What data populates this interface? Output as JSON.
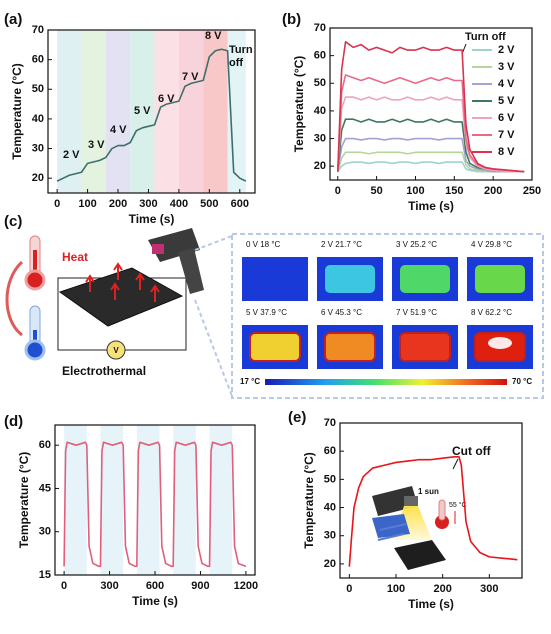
{
  "chart_data": [
    {
      "type": "line",
      "label": "(a)",
      "x_label": "Time (s)",
      "y_label": "Temperature (°C)",
      "xlim": [
        -30,
        650
      ],
      "xticks": [
        0,
        100,
        200,
        300,
        400,
        500,
        600
      ],
      "ylim": [
        15,
        70
      ],
      "yticks": [
        20,
        30,
        40,
        50,
        60,
        70
      ],
      "x": [
        0,
        20,
        40,
        60,
        80,
        100,
        120,
        140,
        160,
        180,
        200,
        220,
        240,
        260,
        280,
        300,
        320,
        340,
        360,
        380,
        400,
        420,
        440,
        460,
        480,
        500,
        520,
        540,
        560,
        580,
        600,
        620
      ],
      "values": [
        19,
        20,
        21,
        21.5,
        22,
        25,
        25.5,
        26,
        27,
        30,
        31,
        31,
        32,
        36,
        37,
        37.5,
        38,
        44,
        45,
        45.5,
        46,
        51,
        52,
        52.5,
        53,
        61,
        63,
        63.5,
        63,
        22,
        20,
        19
      ],
      "color": "#3f6f6a",
      "annotations": [
        "2 V",
        "3 V",
        "4 V",
        "5 V",
        "6 V",
        "7 V",
        "8 V",
        "Turn off"
      ]
    },
    {
      "type": "line",
      "label": "(b)",
      "x_label": "Time (s)",
      "y_label": "Temperature (°C)",
      "xlim": [
        -10,
        250
      ],
      "xticks": [
        0,
        50,
        100,
        150,
        200,
        250
      ],
      "ylim": [
        15,
        70
      ],
      "yticks": [
        20,
        30,
        40,
        50,
        60,
        70
      ],
      "x": [
        0,
        5,
        10,
        20,
        30,
        40,
        50,
        60,
        70,
        80,
        90,
        100,
        110,
        120,
        130,
        140,
        150,
        160,
        165,
        170,
        180,
        190,
        200,
        220,
        240
      ],
      "legend": "right",
      "series": [
        {
          "name": "2 V",
          "color": "#9fd3cf",
          "values": [
            18,
            20,
            21,
            21.5,
            21.5,
            21,
            21.5,
            21.5,
            21,
            21.5,
            21.5,
            21,
            21.5,
            21.5,
            21,
            21.5,
            21.5,
            21.5,
            19,
            18.5,
            18,
            18,
            18,
            18,
            18
          ]
        },
        {
          "name": "3 V",
          "color": "#b3d69a",
          "values": [
            18,
            23,
            25,
            25,
            25,
            24.5,
            25,
            25,
            25,
            25,
            24.5,
            25,
            25,
            25,
            25,
            25,
            25,
            25,
            20.5,
            19,
            18.5,
            18,
            18,
            18,
            18
          ]
        },
        {
          "name": "4 V",
          "color": "#a3a2d6",
          "values": [
            18,
            27,
            30,
            30,
            29.5,
            30,
            30,
            29.5,
            30,
            30,
            29.5,
            30,
            30,
            30,
            29.5,
            30,
            30,
            30,
            22,
            20,
            19,
            18.5,
            18,
            18,
            18
          ]
        },
        {
          "name": "5 V",
          "color": "#3b7a5a",
          "values": [
            18,
            33,
            37,
            37,
            36,
            37,
            36,
            36,
            37,
            36,
            37,
            36,
            36,
            37,
            36,
            37,
            36,
            36,
            25,
            21,
            19.5,
            19,
            18.5,
            18,
            18
          ]
        },
        {
          "name": "6 V",
          "color": "#f2a2ba",
          "values": [
            18,
            41,
            45,
            45,
            44,
            45,
            44,
            45,
            44,
            44,
            45,
            44,
            44,
            45,
            44,
            45,
            44,
            44,
            28,
            23,
            20,
            19,
            18.5,
            18,
            18
          ]
        },
        {
          "name": "7 V",
          "color": "#e86a86",
          "values": [
            18,
            47,
            53,
            52,
            51,
            52,
            51,
            50,
            51,
            52,
            51,
            50,
            51,
            52,
            51,
            52,
            51,
            51,
            30,
            24,
            20.5,
            19.5,
            19,
            18.5,
            18
          ]
        },
        {
          "name": "8 V",
          "color": "#d8344e",
          "values": [
            18,
            55,
            65,
            63,
            64,
            62,
            63,
            62,
            61,
            63,
            62,
            62,
            63,
            62,
            62,
            63,
            62,
            62,
            35,
            26,
            21,
            19.5,
            19,
            18.5,
            18
          ]
        }
      ],
      "annotations": [
        "Turn off"
      ]
    },
    {
      "type": "line",
      "label": "(d)",
      "x_label": "Time (s)",
      "y_label": "Temperature (°C)",
      "xlim": [
        -60,
        1260
      ],
      "xticks": [
        0,
        300,
        600,
        900,
        1200
      ],
      "ylim": [
        15,
        67
      ],
      "yticks": [
        15,
        30,
        45,
        60
      ],
      "x": [
        0,
        10,
        20,
        80,
        140,
        150,
        165,
        190,
        230,
        240,
        250,
        260,
        320,
        380,
        390,
        405,
        430,
        470,
        480,
        490,
        500,
        560,
        620,
        630,
        645,
        670,
        710,
        720,
        730,
        740,
        800,
        860,
        870,
        885,
        910,
        950,
        960,
        970,
        980,
        1040,
        1100,
        1110,
        1125,
        1150,
        1200
      ],
      "values": [
        18,
        58,
        61,
        60,
        61,
        60,
        25,
        19,
        18,
        18,
        58,
        61,
        60,
        61,
        60,
        25,
        19,
        18,
        18,
        58,
        61,
        60,
        61,
        60,
        25,
        19,
        18,
        18,
        58,
        61,
        60,
        61,
        60,
        25,
        19,
        18,
        18,
        58,
        61,
        60,
        61,
        60,
        25,
        19,
        18
      ],
      "color": "#e0607c"
    },
    {
      "type": "line",
      "label": "(e)",
      "x_label": "Time (s)",
      "y_label": "Temperature (°C)",
      "xlim": [
        -20,
        370
      ],
      "xticks": [
        0,
        100,
        200,
        300
      ],
      "ylim": [
        15,
        70
      ],
      "yticks": [
        20,
        30,
        40,
        50,
        60,
        70
      ],
      "x": [
        0,
        5,
        10,
        20,
        30,
        50,
        75,
        100,
        125,
        150,
        175,
        200,
        225,
        235,
        240,
        245,
        250,
        260,
        280,
        300,
        330,
        360
      ],
      "values": [
        19,
        30,
        40,
        47,
        51,
        54,
        55,
        56,
        56.5,
        57,
        57,
        57.5,
        58,
        58,
        55,
        45,
        35,
        28,
        24,
        22.5,
        22,
        21.5
      ],
      "color": "#e8141a",
      "annotations": [
        "Cut off",
        "1 sun",
        "55 °C"
      ]
    }
  ],
  "panel_c": {
    "label": "(c)",
    "heat": "Heat",
    "caption": "Electrothermal",
    "meter": "V",
    "images": [
      {
        "label": "0 V 18 °C",
        "color": "#1c3fd6"
      },
      {
        "label": "2 V 21.7 °C",
        "color": "#3cc6e2"
      },
      {
        "label": "3 V 25.2 °C",
        "color": "#4fd868"
      },
      {
        "label": "4 V 29.8 °C",
        "color": "#68d84a"
      },
      {
        "label": "5 V 37.9 °C",
        "color": "#f0d030"
      },
      {
        "label": "6 V 45.3 °C",
        "color": "#f08a22"
      },
      {
        "label": "7 V 51.9 °C",
        "color": "#e8361e"
      },
      {
        "label": "8 V 62.2 °C",
        "color": "#e0200f"
      }
    ],
    "colorbar": [
      "17 °C",
      "70 °C"
    ]
  }
}
